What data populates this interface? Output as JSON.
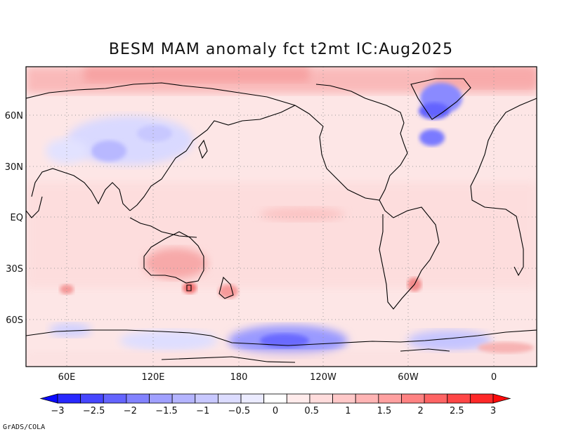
{
  "title": "BESM  MAM anomaly fct t2mt IC:Aug2025",
  "credit": "GrADS/COLA",
  "lat_labels": [
    "60N",
    "30N",
    "EQ",
    "30S",
    "60S"
  ],
  "lon_labels": [
    "60E",
    "120E",
    "180",
    "120W",
    "60W",
    "0"
  ],
  "colorbar": {
    "labels": [
      "−3",
      "−2.5",
      "−2",
      "−1.5",
      "−1",
      "−0.5",
      "0",
      "0.5",
      "1",
      "1.5",
      "2",
      "2.5",
      "3"
    ],
    "colors": [
      "#0a0aff",
      "#2828ff",
      "#4646ff",
      "#6464ff",
      "#8282ff",
      "#a0a0ff",
      "#b4b4ff",
      "#c8c8ff",
      "#dcdcff",
      "#ebebff",
      "#ffffff",
      "#ffebeb",
      "#ffdcdc",
      "#ffc8c8",
      "#ffb4b4",
      "#ffa0a0",
      "#ff8282",
      "#ff6464",
      "#ff4646",
      "#ff2828",
      "#ff0a0a"
    ]
  },
  "background_anomaly_color": "#fdeaea"
}
